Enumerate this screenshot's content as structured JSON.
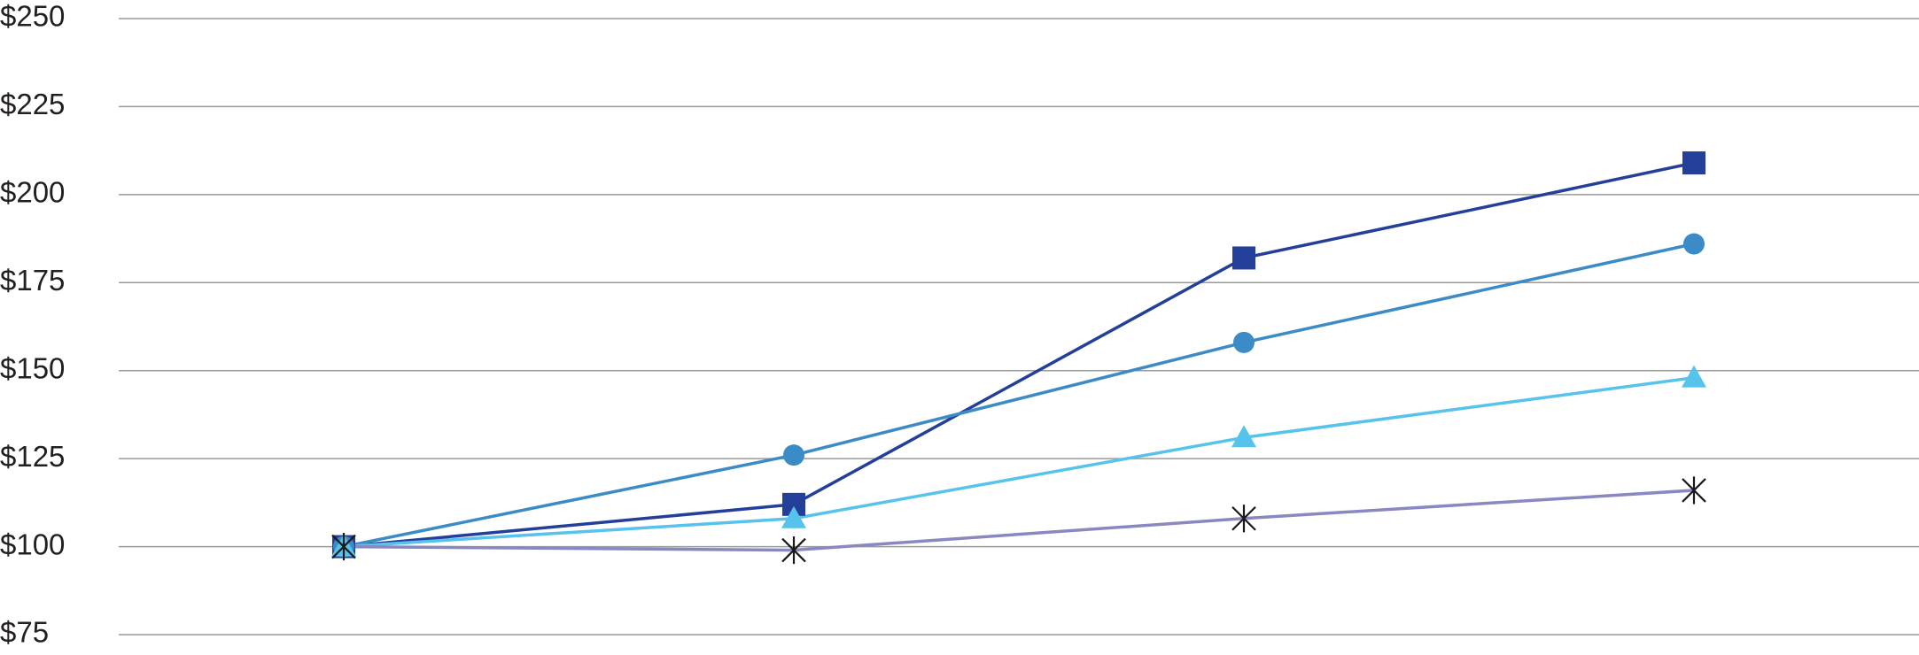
{
  "chart_data": {
    "type": "line",
    "categories": [
      null,
      null,
      null,
      null
    ],
    "series": [
      {
        "color": "#233f99",
        "marker": "square",
        "values": [
          100,
          112,
          182,
          209
        ]
      },
      {
        "color": "#3b8bc6",
        "marker": "circle",
        "values": [
          100,
          126,
          158,
          186
        ]
      },
      {
        "color": "#56c3ec",
        "marker": "triangle",
        "values": [
          100,
          108,
          131,
          148
        ]
      },
      {
        "color": "#8a88c0",
        "marker": "star",
        "marker_color": "#1a1a1a",
        "values": [
          100,
          99,
          108,
          116
        ]
      }
    ],
    "ylim": [
      75,
      250
    ],
    "yticks": [
      {
        "value": 75,
        "label": "$75"
      },
      {
        "value": 100,
        "label": "$100"
      },
      {
        "value": 125,
        "label": "$125"
      },
      {
        "value": 150,
        "label": "$150"
      },
      {
        "value": 175,
        "label": "$175"
      },
      {
        "value": 200,
        "label": "$200"
      },
      {
        "value": 225,
        "label": "$225"
      },
      {
        "value": 250,
        "label": "$250"
      }
    ],
    "grid": true
  }
}
